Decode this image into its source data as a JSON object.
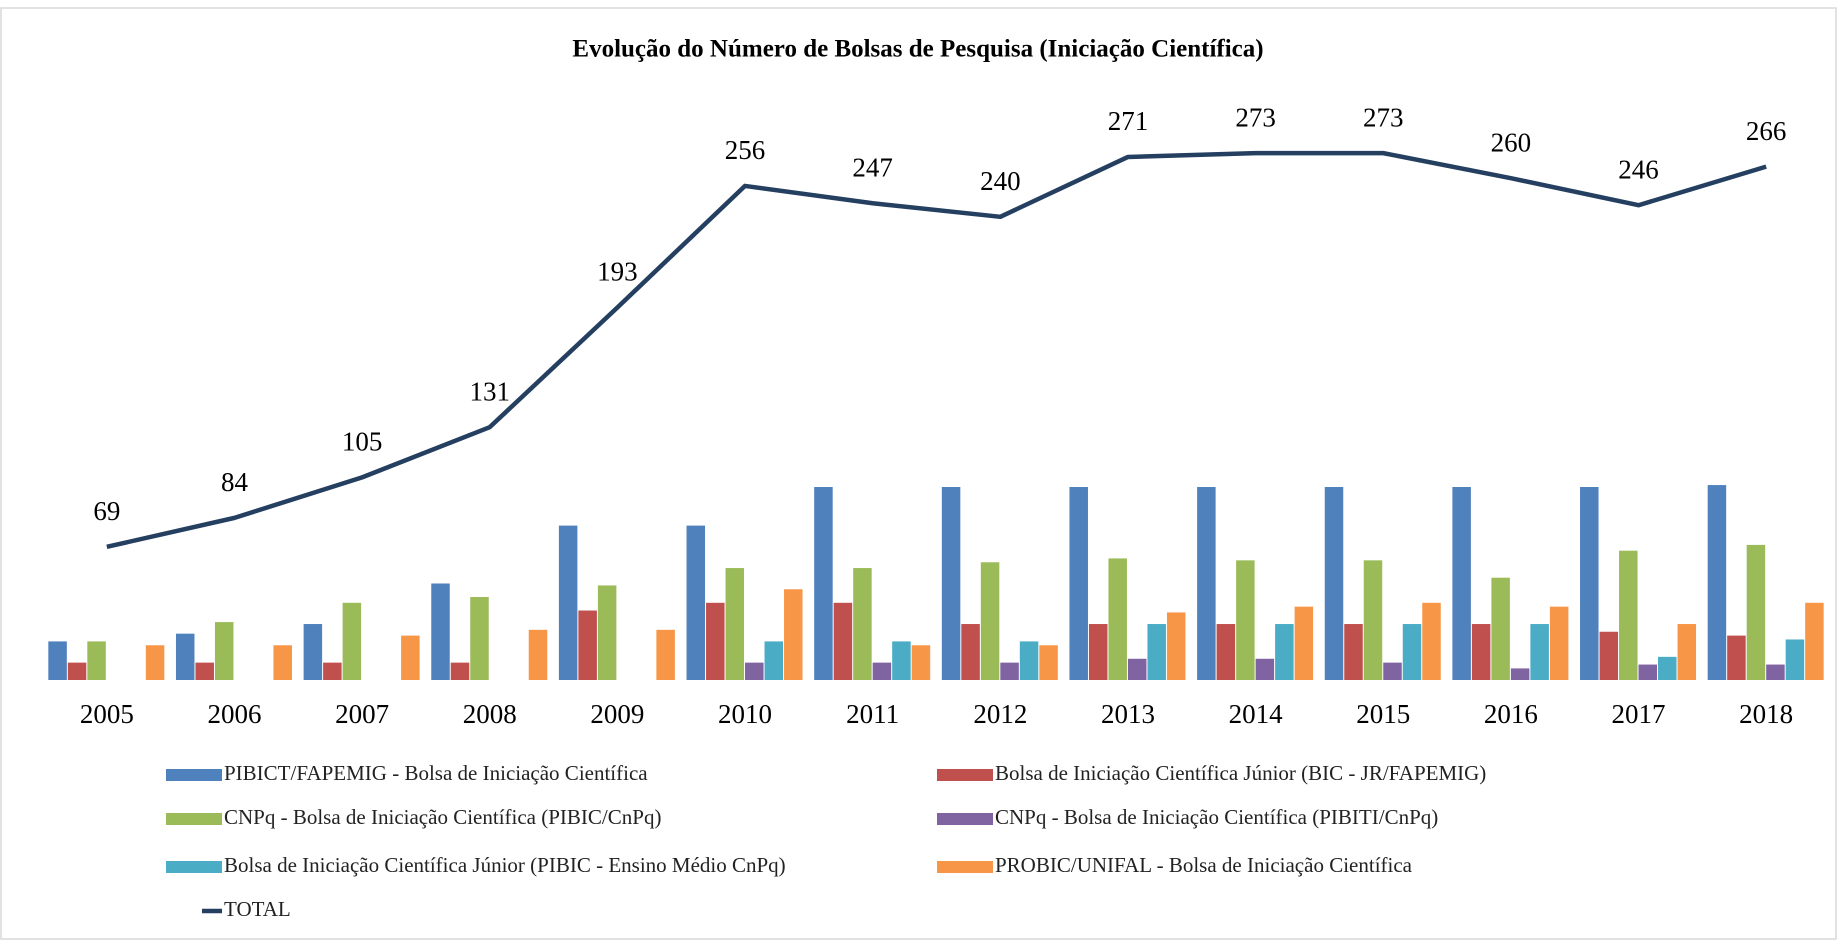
{
  "chart_data": {
    "type": "bar",
    "title": "Evolução do Número de Bolsas de Pesquisa  (Iniciação Científica)",
    "categories": [
      "2005",
      "2006",
      "2007",
      "2008",
      "2009",
      "2010",
      "2011",
      "2012",
      "2013",
      "2014",
      "2015",
      "2016",
      "2017",
      "2018"
    ],
    "ylim": [
      0,
      300
    ],
    "series": [
      {
        "name": "PIBICT/FAPEMIG - Bolsa de Iniciação Científica",
        "color": "#4f81bd",
        "values": [
          20,
          24,
          29,
          50,
          80,
          80,
          100,
          100,
          100,
          100,
          100,
          100,
          100,
          101
        ]
      },
      {
        "name": "Bolsa de Iniciação Científica Júnior (BIC - JR/FAPEMIG)",
        "color": "#c0504d",
        "values": [
          9,
          9,
          9,
          9,
          36,
          40,
          40,
          29,
          29,
          29,
          29,
          29,
          25,
          23
        ]
      },
      {
        "name": "CNPq - Bolsa de Iniciação Científica (PIBIC/CnPq)",
        "color": "#9bbb59",
        "values": [
          20,
          30,
          40,
          43,
          49,
          58,
          58,
          61,
          63,
          62,
          62,
          53,
          67,
          70
        ]
      },
      {
        "name": "CNPq - Bolsa de Iniciação Científica (PIBITI/CnPq)",
        "color": "#8064a2",
        "values": [
          null,
          null,
          null,
          null,
          null,
          9,
          9,
          9,
          11,
          11,
          9,
          6,
          8,
          8
        ]
      },
      {
        "name": "Bolsa de Iniciação Científica Júnior (PIBIC - Ensino Médio CnPq)",
        "color": "#4bacc6",
        "values": [
          null,
          null,
          null,
          null,
          null,
          20,
          20,
          20,
          29,
          29,
          29,
          29,
          12,
          21
        ]
      },
      {
        "name": "PROBIC/UNIFAL - Bolsa de Iniciação Científica",
        "color": "#f79646",
        "values": [
          18,
          18,
          23,
          26,
          26,
          47,
          18,
          18,
          35,
          38,
          40,
          38,
          29,
          40
        ]
      },
      {
        "name": "TOTAL",
        "type": "line",
        "color": "#243f60",
        "values": [
          69,
          84,
          105,
          131,
          193,
          256,
          247,
          240,
          271,
          273,
          273,
          260,
          246,
          266
        ]
      }
    ]
  }
}
